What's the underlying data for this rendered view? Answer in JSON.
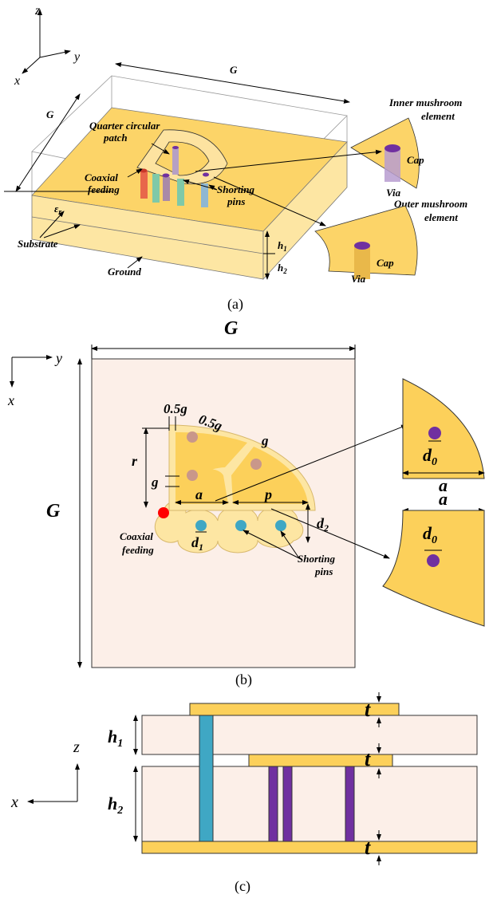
{
  "panel_a": {
    "axes": {
      "z": "z",
      "y": "y",
      "x": "x"
    },
    "dims": {
      "g_top": "G",
      "g_left": "G",
      "h1": {
        "main": "h",
        "sub": "1"
      },
      "h2": {
        "main": "h",
        "sub": "2"
      }
    },
    "labels": {
      "quarter_patch": [
        "Quarter circular",
        "patch"
      ],
      "coaxial": [
        "Coaxial",
        "feeding"
      ],
      "shorting": [
        "Shorting",
        "pins"
      ],
      "eps": {
        "main": "ε",
        "sub": "r"
      },
      "substrate": "Substrate",
      "ground": "Ground"
    },
    "inner": {
      "title": [
        "Inner mushroom",
        "element"
      ],
      "cap": "Cap",
      "via": "Via"
    },
    "outer": {
      "title": [
        "Outer mushroom",
        "element"
      ],
      "cap": "Cap",
      "via": "Via"
    },
    "caption": "(a)"
  },
  "panel_b": {
    "axes": {
      "y": "y",
      "x": "x"
    },
    "g_top": "G",
    "g_left": "G",
    "dims": {
      "half_g_1": {
        "main": "0.5",
        "var": "g"
      },
      "half_g_2": {
        "main": "0.5",
        "var": "g"
      },
      "g_1": "g",
      "g_2": "g",
      "r": "r",
      "a": "a",
      "p": "p",
      "d2": {
        "main": "d",
        "sub": "2"
      },
      "d1": {
        "main": "d",
        "sub": "1"
      }
    },
    "labels": {
      "coaxial": [
        "Coaxial",
        "feeding"
      ],
      "shorting": [
        "Shorting",
        "pins"
      ]
    },
    "inner": {
      "d0": {
        "main": "d",
        "sub": "0"
      },
      "a": "a"
    },
    "outer": {
      "a": "a",
      "d0": {
        "main": "d",
        "sub": "0"
      }
    },
    "caption": "(b)"
  },
  "panel_c": {
    "t_1": "t",
    "t_2": "t",
    "t_3": "t",
    "h1": {
      "main": "h",
      "sub": "1"
    },
    "h2": {
      "main": "h",
      "sub": "2"
    },
    "axes": {
      "z": "z",
      "x": "x"
    },
    "caption": "(c)"
  }
}
